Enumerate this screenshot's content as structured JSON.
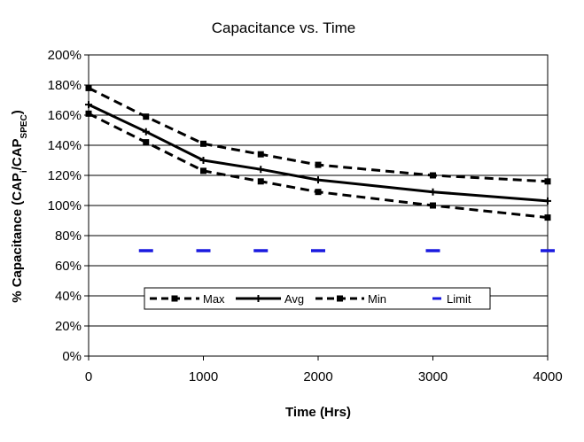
{
  "chart_data": {
    "type": "line",
    "title": "Capacitance vs. Time",
    "xlabel": "Time (Hrs)",
    "ylabel": {
      "prefix": "% Capacitance (CAP",
      "sub1": "i",
      "middle": "/CAP",
      "sub2": "SPEC",
      "suffix": ")"
    },
    "xlim": [
      0,
      4000
    ],
    "ylim": [
      0,
      200
    ],
    "x_ticks": [
      0,
      1000,
      2000,
      3000,
      4000
    ],
    "x_tick_labels": [
      "0",
      "1000",
      "2000",
      "3000",
      "4000"
    ],
    "y_ticks": [
      0,
      20,
      40,
      60,
      80,
      100,
      120,
      140,
      160,
      180,
      200
    ],
    "y_tick_labels": [
      "0%",
      "20%",
      "40%",
      "60%",
      "80%",
      "100%",
      "120%",
      "140%",
      "160%",
      "180%",
      "200%"
    ],
    "grid": "horizontal",
    "legend_position": "lower-center",
    "series": [
      {
        "name": "Max",
        "style": "dashed",
        "color": "#000000",
        "x": [
          0,
          500,
          1000,
          1500,
          2000,
          3000,
          4000
        ],
        "y": [
          178,
          159,
          141,
          134,
          127,
          120,
          116
        ]
      },
      {
        "name": "Avg",
        "style": "solid",
        "color": "#000000",
        "x": [
          0,
          500,
          1000,
          1500,
          2000,
          3000,
          4000
        ],
        "y": [
          167,
          149,
          130,
          124,
          117,
          109,
          103
        ]
      },
      {
        "name": "Min",
        "style": "dashed",
        "color": "#000000",
        "x": [
          0,
          500,
          1000,
          1500,
          2000,
          3000,
          4000
        ],
        "y": [
          161,
          142,
          123,
          116,
          109,
          100,
          92
        ]
      },
      {
        "name": "Limit",
        "style": "markers",
        "color": "#1a1adf",
        "x": [
          500,
          1000,
          1500,
          2000,
          3000,
          4000
        ],
        "y": [
          70,
          70,
          70,
          70,
          70,
          70
        ]
      }
    ]
  }
}
